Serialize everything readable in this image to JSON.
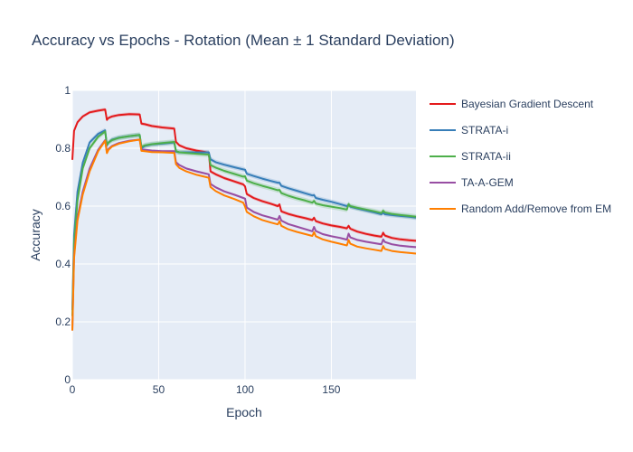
{
  "chart_data": {
    "type": "line",
    "title": "Accuracy vs Epochs - Rotation (Mean ± 1 Standard Deviation)",
    "xlabel": "Epoch",
    "ylabel": "Accuracy",
    "xlim": [
      0,
      199
    ],
    "ylim": [
      0,
      1
    ],
    "xticks": [
      0,
      50,
      100,
      150
    ],
    "yticks": [
      0,
      0.2,
      0.4,
      0.6,
      0.8,
      1
    ],
    "grid": true,
    "legend_position": "right",
    "plot_background": "#E5ECF6",
    "series": [
      {
        "name": "Bayesian Gradient Descent",
        "color": "#E41A1C",
        "band": 0.006,
        "points": [
          [
            0,
            0.76
          ],
          [
            1,
            0.86
          ],
          [
            3,
            0.89
          ],
          [
            6,
            0.91
          ],
          [
            10,
            0.924
          ],
          [
            15,
            0.93
          ],
          [
            19,
            0.934
          ],
          [
            20,
            0.898
          ],
          [
            21,
            0.905
          ],
          [
            23,
            0.91
          ],
          [
            27,
            0.915
          ],
          [
            33,
            0.918
          ],
          [
            39,
            0.917
          ],
          [
            40,
            0.885
          ],
          [
            42,
            0.883
          ],
          [
            46,
            0.877
          ],
          [
            52,
            0.872
          ],
          [
            59,
            0.868
          ],
          [
            60,
            0.822
          ],
          [
            62,
            0.81
          ],
          [
            66,
            0.8
          ],
          [
            72,
            0.792
          ],
          [
            79,
            0.785
          ],
          [
            80,
            0.72
          ],
          [
            83,
            0.71
          ],
          [
            88,
            0.697
          ],
          [
            94,
            0.685
          ],
          [
            99,
            0.675
          ],
          [
            100,
            0.668
          ],
          [
            101,
            0.642
          ],
          [
            105,
            0.628
          ],
          [
            110,
            0.617
          ],
          [
            115,
            0.608
          ],
          [
            119,
            0.6
          ],
          [
            120,
            0.606
          ],
          [
            121,
            0.582
          ],
          [
            125,
            0.573
          ],
          [
            130,
            0.565
          ],
          [
            135,
            0.558
          ],
          [
            139,
            0.552
          ],
          [
            140,
            0.56
          ],
          [
            141,
            0.548
          ],
          [
            145,
            0.54
          ],
          [
            150,
            0.533
          ],
          [
            155,
            0.528
          ],
          [
            159,
            0.523
          ],
          [
            160,
            0.532
          ],
          [
            161,
            0.522
          ],
          [
            165,
            0.512
          ],
          [
            170,
            0.504
          ],
          [
            175,
            0.498
          ],
          [
            179,
            0.494
          ],
          [
            180,
            0.508
          ],
          [
            181,
            0.498
          ],
          [
            185,
            0.49
          ],
          [
            190,
            0.485
          ],
          [
            195,
            0.482
          ],
          [
            199,
            0.48
          ]
        ]
      },
      {
        "name": "STRATA-i",
        "color": "#377EB8",
        "band": 0.008,
        "points": [
          [
            0,
            0.24
          ],
          [
            1,
            0.5
          ],
          [
            3,
            0.65
          ],
          [
            6,
            0.75
          ],
          [
            10,
            0.82
          ],
          [
            15,
            0.85
          ],
          [
            19,
            0.862
          ],
          [
            20,
            0.81
          ],
          [
            21,
            0.82
          ],
          [
            23,
            0.83
          ],
          [
            27,
            0.837
          ],
          [
            33,
            0.842
          ],
          [
            39,
            0.846
          ],
          [
            40,
            0.8
          ],
          [
            42,
            0.808
          ],
          [
            46,
            0.813
          ],
          [
            52,
            0.816
          ],
          [
            59,
            0.82
          ],
          [
            60,
            0.788
          ],
          [
            62,
            0.786
          ],
          [
            66,
            0.786
          ],
          [
            72,
            0.786
          ],
          [
            79,
            0.786
          ],
          [
            80,
            0.762
          ],
          [
            83,
            0.752
          ],
          [
            88,
            0.743
          ],
          [
            94,
            0.734
          ],
          [
            99,
            0.727
          ],
          [
            100,
            0.726
          ],
          [
            101,
            0.712
          ],
          [
            105,
            0.704
          ],
          [
            110,
            0.695
          ],
          [
            115,
            0.687
          ],
          [
            119,
            0.681
          ],
          [
            120,
            0.681
          ],
          [
            121,
            0.67
          ],
          [
            125,
            0.662
          ],
          [
            130,
            0.653
          ],
          [
            135,
            0.644
          ],
          [
            139,
            0.637
          ],
          [
            140,
            0.638
          ],
          [
            141,
            0.628
          ],
          [
            145,
            0.622
          ],
          [
            150,
            0.615
          ],
          [
            155,
            0.607
          ],
          [
            159,
            0.6
          ],
          [
            160,
            0.605
          ],
          [
            161,
            0.598
          ],
          [
            165,
            0.592
          ],
          [
            170,
            0.585
          ],
          [
            175,
            0.578
          ],
          [
            179,
            0.572
          ],
          [
            180,
            0.577
          ],
          [
            181,
            0.572
          ],
          [
            185,
            0.569
          ],
          [
            190,
            0.566
          ],
          [
            195,
            0.563
          ],
          [
            199,
            0.56
          ]
        ]
      },
      {
        "name": "STRATA-ii",
        "color": "#4DAF4A",
        "band": 0.009,
        "points": [
          [
            0,
            0.22
          ],
          [
            1,
            0.47
          ],
          [
            3,
            0.62
          ],
          [
            6,
            0.73
          ],
          [
            10,
            0.8
          ],
          [
            15,
            0.84
          ],
          [
            19,
            0.858
          ],
          [
            20,
            0.812
          ],
          [
            21,
            0.82
          ],
          [
            23,
            0.828
          ],
          [
            27,
            0.836
          ],
          [
            33,
            0.842
          ],
          [
            39,
            0.846
          ],
          [
            40,
            0.805
          ],
          [
            42,
            0.81
          ],
          [
            46,
            0.814
          ],
          [
            52,
            0.818
          ],
          [
            59,
            0.822
          ],
          [
            60,
            0.79
          ],
          [
            62,
            0.786
          ],
          [
            66,
            0.784
          ],
          [
            72,
            0.781
          ],
          [
            79,
            0.778
          ],
          [
            80,
            0.742
          ],
          [
            83,
            0.733
          ],
          [
            88,
            0.722
          ],
          [
            94,
            0.711
          ],
          [
            99,
            0.702
          ],
          [
            100,
            0.703
          ],
          [
            101,
            0.688
          ],
          [
            105,
            0.679
          ],
          [
            110,
            0.67
          ],
          [
            115,
            0.662
          ],
          [
            119,
            0.655
          ],
          [
            120,
            0.656
          ],
          [
            121,
            0.645
          ],
          [
            125,
            0.636
          ],
          [
            130,
            0.627
          ],
          [
            135,
            0.619
          ],
          [
            139,
            0.612
          ],
          [
            140,
            0.618
          ],
          [
            141,
            0.609
          ],
          [
            145,
            0.603
          ],
          [
            150,
            0.598
          ],
          [
            155,
            0.593
          ],
          [
            159,
            0.588
          ],
          [
            160,
            0.607
          ],
          [
            161,
            0.6
          ],
          [
            165,
            0.594
          ],
          [
            170,
            0.588
          ],
          [
            175,
            0.582
          ],
          [
            179,
            0.576
          ],
          [
            180,
            0.584
          ],
          [
            181,
            0.578
          ],
          [
            185,
            0.573
          ],
          [
            190,
            0.569
          ],
          [
            195,
            0.566
          ],
          [
            199,
            0.563
          ]
        ]
      },
      {
        "name": "TA-A-GEM",
        "color": "#984EA3",
        "band": 0.004,
        "points": [
          [
            0,
            0.17
          ],
          [
            1,
            0.43
          ],
          [
            3,
            0.56
          ],
          [
            6,
            0.65
          ],
          [
            10,
            0.73
          ],
          [
            15,
            0.795
          ],
          [
            19,
            0.828
          ],
          [
            20,
            0.788
          ],
          [
            21,
            0.798
          ],
          [
            23,
            0.808
          ],
          [
            27,
            0.818
          ],
          [
            33,
            0.826
          ],
          [
            39,
            0.83
          ],
          [
            40,
            0.795
          ],
          [
            42,
            0.795
          ],
          [
            46,
            0.792
          ],
          [
            52,
            0.79
          ],
          [
            59,
            0.79
          ],
          [
            60,
            0.752
          ],
          [
            62,
            0.742
          ],
          [
            66,
            0.73
          ],
          [
            72,
            0.72
          ],
          [
            79,
            0.71
          ],
          [
            80,
            0.677
          ],
          [
            83,
            0.665
          ],
          [
            88,
            0.651
          ],
          [
            94,
            0.639
          ],
          [
            99,
            0.628
          ],
          [
            100,
            0.626
          ],
          [
            101,
            0.595
          ],
          [
            105,
            0.58
          ],
          [
            110,
            0.568
          ],
          [
            115,
            0.56
          ],
          [
            119,
            0.553
          ],
          [
            120,
            0.566
          ],
          [
            121,
            0.55
          ],
          [
            125,
            0.538
          ],
          [
            130,
            0.529
          ],
          [
            135,
            0.52
          ],
          [
            139,
            0.513
          ],
          [
            140,
            0.528
          ],
          [
            141,
            0.514
          ],
          [
            145,
            0.503
          ],
          [
            150,
            0.496
          ],
          [
            155,
            0.49
          ],
          [
            159,
            0.484
          ],
          [
            160,
            0.505
          ],
          [
            161,
            0.492
          ],
          [
            165,
            0.483
          ],
          [
            170,
            0.477
          ],
          [
            175,
            0.472
          ],
          [
            179,
            0.468
          ],
          [
            180,
            0.485
          ],
          [
            181,
            0.476
          ],
          [
            185,
            0.468
          ],
          [
            190,
            0.463
          ],
          [
            195,
            0.46
          ],
          [
            199,
            0.458
          ]
        ]
      },
      {
        "name": "Random Add/Remove from EM",
        "color": "#FF7F00",
        "band": 0.003,
        "points": [
          [
            0,
            0.17
          ],
          [
            1,
            0.42
          ],
          [
            3,
            0.55
          ],
          [
            6,
            0.64
          ],
          [
            10,
            0.72
          ],
          [
            15,
            0.79
          ],
          [
            19,
            0.826
          ],
          [
            20,
            0.783
          ],
          [
            21,
            0.795
          ],
          [
            23,
            0.806
          ],
          [
            27,
            0.816
          ],
          [
            33,
            0.824
          ],
          [
            39,
            0.83
          ],
          [
            40,
            0.791
          ],
          [
            42,
            0.79
          ],
          [
            46,
            0.787
          ],
          [
            52,
            0.786
          ],
          [
            59,
            0.784
          ],
          [
            60,
            0.745
          ],
          [
            62,
            0.732
          ],
          [
            66,
            0.72
          ],
          [
            72,
            0.708
          ],
          [
            79,
            0.698
          ],
          [
            80,
            0.666
          ],
          [
            83,
            0.652
          ],
          [
            88,
            0.637
          ],
          [
            94,
            0.624
          ],
          [
            99,
            0.612
          ],
          [
            100,
            0.598
          ],
          [
            101,
            0.58
          ],
          [
            105,
            0.565
          ],
          [
            110,
            0.552
          ],
          [
            115,
            0.543
          ],
          [
            119,
            0.537
          ],
          [
            120,
            0.548
          ],
          [
            121,
            0.532
          ],
          [
            125,
            0.52
          ],
          [
            130,
            0.511
          ],
          [
            135,
            0.503
          ],
          [
            139,
            0.497
          ],
          [
            140,
            0.51
          ],
          [
            141,
            0.496
          ],
          [
            145,
            0.485
          ],
          [
            150,
            0.477
          ],
          [
            155,
            0.47
          ],
          [
            159,
            0.464
          ],
          [
            160,
            0.483
          ],
          [
            161,
            0.47
          ],
          [
            165,
            0.46
          ],
          [
            170,
            0.454
          ],
          [
            175,
            0.449
          ],
          [
            179,
            0.445
          ],
          [
            180,
            0.462
          ],
          [
            181,
            0.452
          ],
          [
            185,
            0.445
          ],
          [
            190,
            0.441
          ],
          [
            195,
            0.438
          ],
          [
            199,
            0.436
          ]
        ]
      }
    ]
  }
}
